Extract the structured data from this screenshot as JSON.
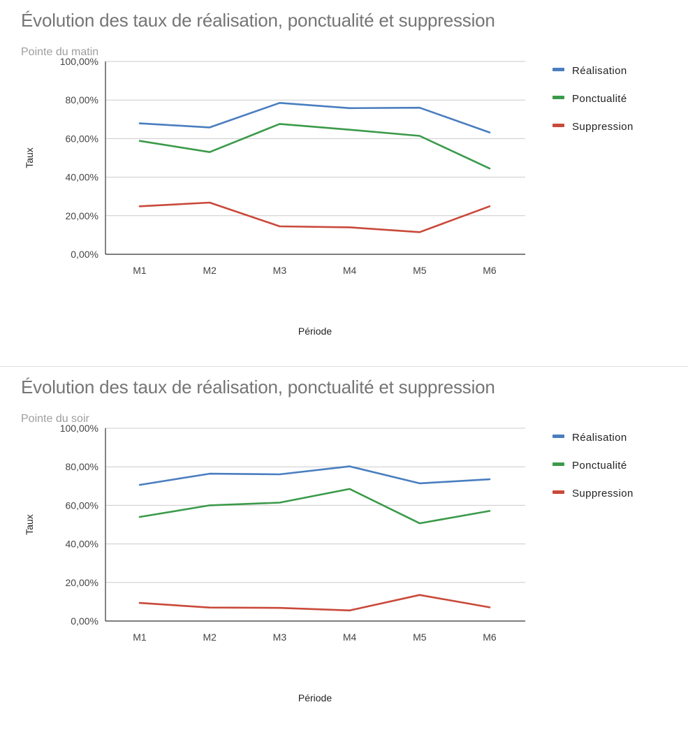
{
  "chart_data": [
    {
      "type": "line",
      "title": "Évolution des taux de réalisation, ponctualité et suppression",
      "subtitle": "Pointe du matin",
      "xlabel": "Période",
      "ylabel": "Taux",
      "categories": [
        "M1",
        "M2",
        "M3",
        "M4",
        "M5",
        "M6"
      ],
      "ylim": [
        0,
        100
      ],
      "yticks": [
        "0,00%",
        "20,00%",
        "40,00%",
        "60,00%",
        "80,00%",
        "100,00%"
      ],
      "grid": true,
      "legend_position": "right",
      "series": [
        {
          "name": "Réalisation",
          "color": "#4a7ebf",
          "values": [
            67.9,
            65.8,
            78.5,
            75.8,
            76.0,
            63.2
          ]
        },
        {
          "name": "Ponctualité",
          "color": "#3b9a4a",
          "values": [
            58.8,
            53.0,
            67.6,
            64.6,
            61.4,
            44.5
          ]
        },
        {
          "name": "Suppression",
          "color": "#c9493a",
          "values": [
            24.9,
            26.8,
            14.5,
            14.0,
            11.5,
            24.9
          ]
        }
      ]
    },
    {
      "type": "line",
      "title": "Évolution des taux de réalisation, ponctualité et suppression",
      "subtitle": "Pointe du soir",
      "xlabel": "Période",
      "ylabel": "Taux",
      "categories": [
        "M1",
        "M2",
        "M3",
        "M4",
        "M5",
        "M6"
      ],
      "ylim": [
        0,
        100
      ],
      "yticks": [
        "0,00%",
        "20,00%",
        "40,00%",
        "60,00%",
        "80,00%",
        "100,00%"
      ],
      "grid": true,
      "legend_position": "right",
      "series": [
        {
          "name": "Réalisation",
          "color": "#4a7ebf",
          "values": [
            70.6,
            76.4,
            76.1,
            80.2,
            71.4,
            73.5
          ]
        },
        {
          "name": "Ponctualité",
          "color": "#3b9a4a",
          "values": [
            54.0,
            60.0,
            61.4,
            68.5,
            50.7,
            57.1
          ]
        },
        {
          "name": "Suppression",
          "color": "#c9493a",
          "values": [
            9.4,
            7.0,
            6.8,
            5.5,
            13.5,
            7.1
          ]
        }
      ]
    }
  ]
}
